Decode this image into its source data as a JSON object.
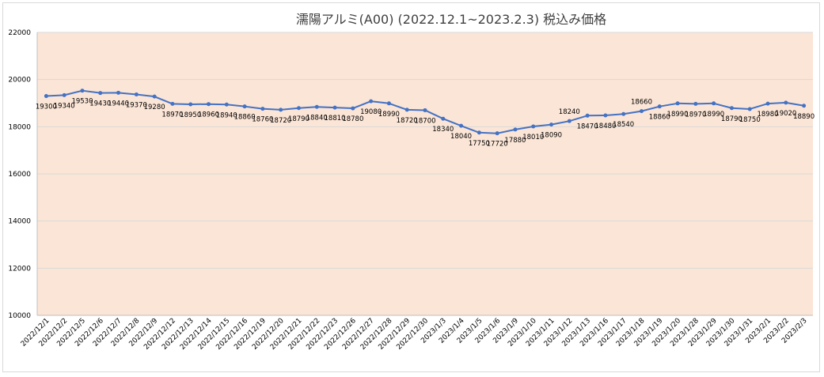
{
  "chart_data": {
    "type": "line",
    "title": "濡陽アルミ(A00) (2022.12.1~2023.2.3) 税込み価格",
    "xlabel": "",
    "ylabel": "",
    "ylim": [
      10000,
      22000
    ],
    "y_ticks": [
      10000,
      12000,
      14000,
      16000,
      18000,
      20000,
      22000
    ],
    "grid": true,
    "legend": "none",
    "categories": [
      "2022/12/1",
      "2022/12/2",
      "2022/12/5",
      "2022/12/6",
      "2022/12/7",
      "2022/12/8",
      "2022/12/9",
      "2022/12/12",
      "2022/12/13",
      "2022/12/14",
      "2022/12/15",
      "2022/12/16",
      "2022/12/19",
      "2022/12/20",
      "2022/12/21",
      "2022/12/22",
      "2022/12/23",
      "2022/12/26",
      "2022/12/27",
      "2022/12/28",
      "2022/12/29",
      "2022/12/30",
      "2023/1/3",
      "2023/1/4",
      "2023/1/5",
      "2023/1/6",
      "2023/1/9",
      "2023/1/10",
      "2023/1/11",
      "2023/1/12",
      "2023/1/13",
      "2023/1/16",
      "2023/1/17",
      "2023/1/18",
      "2023/1/19",
      "2023/1/20",
      "2023/1/28",
      "2023/1/29",
      "2023/1/30",
      "2023/1/31",
      "2023/2/1",
      "2023/2/2",
      "2023/2/3"
    ],
    "series": [
      {
        "values": [
          19300,
          19340,
          19530,
          19430,
          19440,
          19370,
          19280,
          18970,
          18950,
          18960,
          18940,
          18860,
          18760,
          18720,
          18790,
          18840,
          18810,
          18780,
          19080,
          18990,
          18720,
          18700,
          18340,
          18040,
          17750,
          17720,
          17880,
          18010,
          18090,
          18240,
          18470,
          18480,
          18540,
          18660,
          18860,
          18990,
          18970,
          18990,
          18790,
          18750,
          18980,
          19020,
          18890
        ]
      }
    ],
    "colors": {
      "line": "#4472c4",
      "plot_bg": "#fbe5d6",
      "grid": "#d9d9d9",
      "axis": "#bfbfbf"
    }
  }
}
